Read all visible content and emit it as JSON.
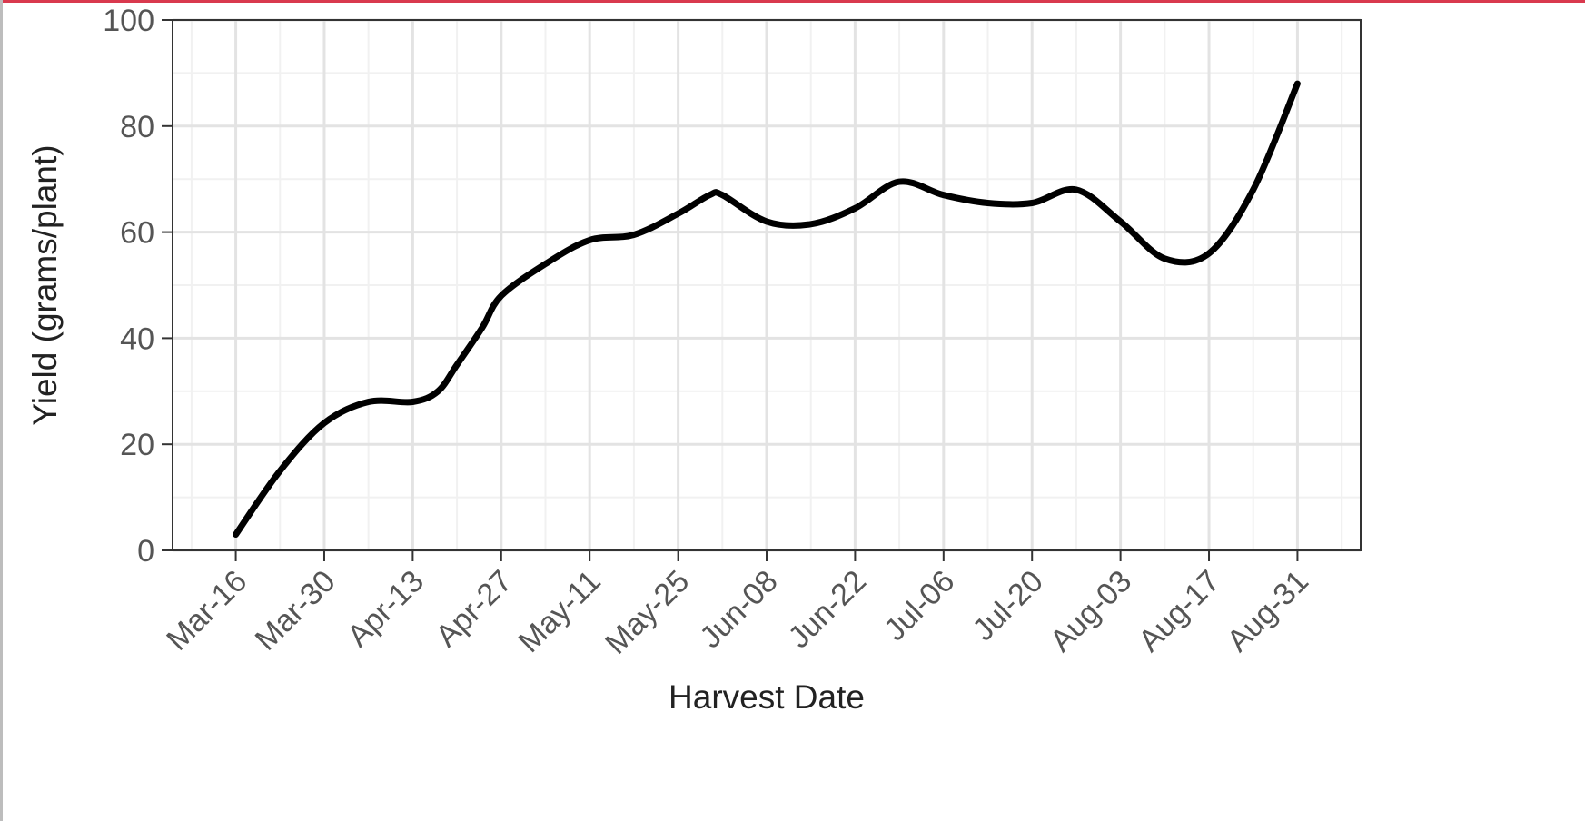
{
  "colors": {
    "accent_top": "#d9394e",
    "line": "#000000",
    "grid_major": "#e3e3e3",
    "grid_minor": "#f1f1f1",
    "panel_border": "#333333"
  },
  "chart_data": {
    "type": "line",
    "xlabel": "Harvest Date",
    "ylabel": "Yield (grams/plant)",
    "ylim": [
      0,
      100
    ],
    "xlim": [
      "Mar-06",
      "Sep-10"
    ],
    "x_ticks": [
      "Mar-16",
      "Mar-30",
      "Apr-13",
      "Apr-27",
      "May-11",
      "May-25",
      "Jun-08",
      "Jun-22",
      "Jul-06",
      "Jul-20",
      "Aug-03",
      "Aug-17",
      "Aug-31"
    ],
    "y_ticks": [
      0,
      20,
      40,
      60,
      80,
      100
    ],
    "grid": true,
    "series": [
      {
        "x": [
          "Mar-16",
          "Mar-23",
          "Mar-30",
          "Apr-06",
          "Apr-13",
          "Apr-17",
          "Apr-20",
          "Apr-24",
          "Apr-27",
          "May-04",
          "May-11",
          "May-18",
          "May-25",
          "May-30",
          "Jun-01",
          "Jun-08",
          "Jun-15",
          "Jun-22",
          "Jun-29",
          "Jul-06",
          "Jul-13",
          "Jul-20",
          "Jul-27",
          "Aug-03",
          "Aug-10",
          "Aug-17",
          "Aug-24",
          "Aug-31"
        ],
        "y": [
          3,
          15,
          24,
          28,
          28,
          30,
          35,
          42,
          48,
          54,
          58.5,
          59.5,
          63.5,
          67,
          67,
          62,
          61.5,
          64.5,
          69.5,
          67,
          65.5,
          65.5,
          68,
          62,
          55,
          56,
          68,
          88
        ]
      }
    ]
  }
}
